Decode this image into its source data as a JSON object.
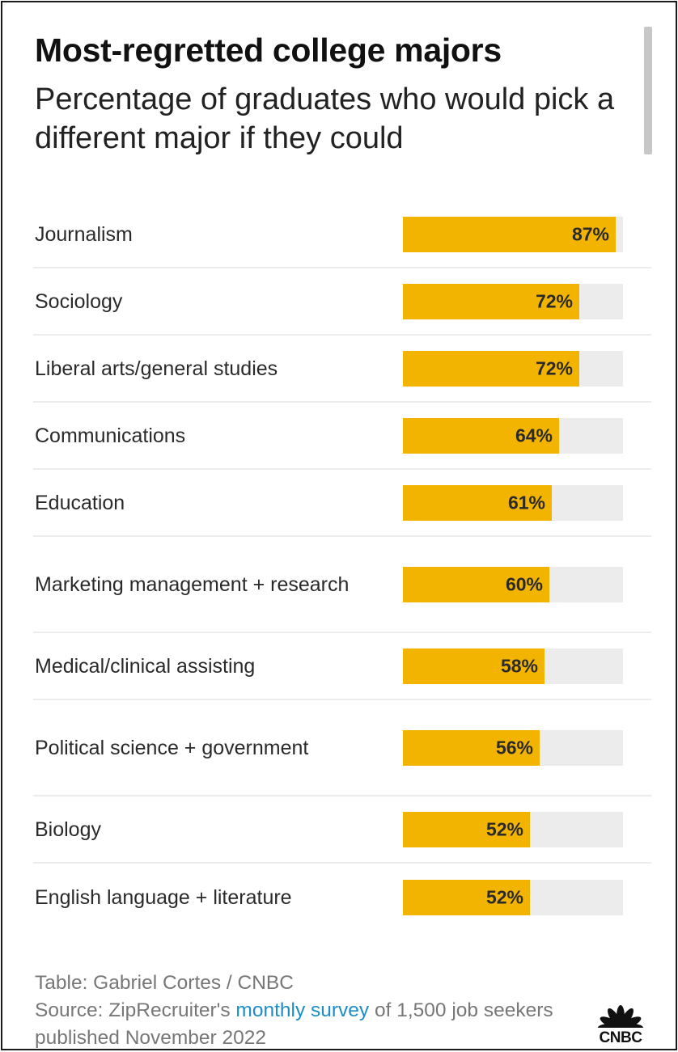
{
  "header": {
    "title": "Most-regretted college majors",
    "subtitle": "Percentage of graduates who would pick a different major if they could"
  },
  "chart_data": {
    "type": "bar",
    "orientation": "horizontal",
    "title": "Most-regretted college majors",
    "subtitle": "Percentage of graduates who would pick a different major if they could",
    "categories": [
      "Journalism",
      "Sociology",
      "Liberal arts/general studies",
      "Communications",
      "Education",
      "Marketing management + research",
      "Medical/clinical assisting",
      "Political science + government",
      "Biology",
      "English language + literature"
    ],
    "values": [
      87,
      72,
      72,
      64,
      61,
      60,
      58,
      56,
      52,
      52
    ],
    "value_labels": [
      "87%",
      "72%",
      "72%",
      "64%",
      "61%",
      "60%",
      "58%",
      "56%",
      "52%",
      "52%"
    ],
    "xlim": [
      0,
      90
    ],
    "xlabel": "",
    "ylabel": "",
    "bar_color": "#f3b400",
    "track_color": "#ececec"
  },
  "footer": {
    "table_credit": "Table: Gabriel Cortes / CNBC",
    "source_prefix": "Source: ZipRecruiter's ",
    "source_link": "monthly survey",
    "source_suffix": " of 1,500 job seekers published November 2022"
  },
  "logo": {
    "text": "CNBC",
    "icon": "cnbc-peacock-icon"
  },
  "colors": {
    "bar": "#f3b400",
    "track": "#ececec",
    "link": "#1c8ec7"
  }
}
